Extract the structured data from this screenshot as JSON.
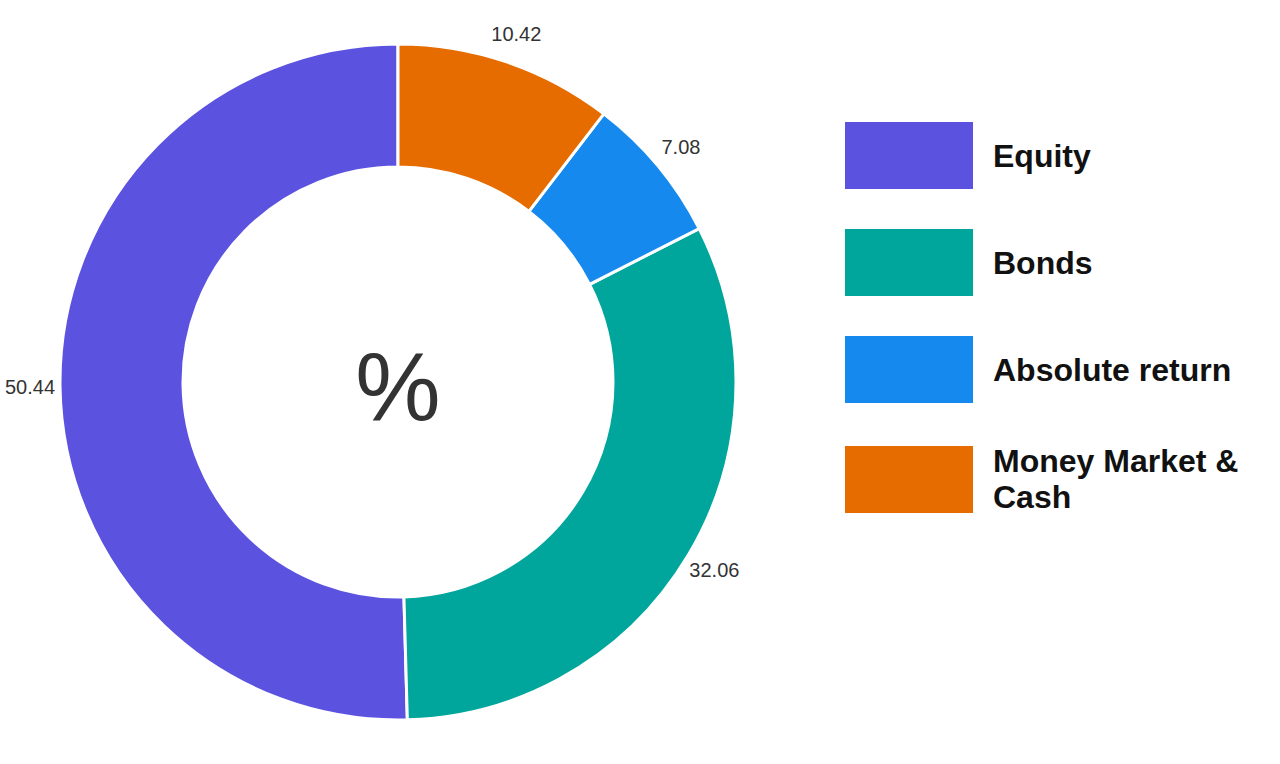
{
  "chart_data": {
    "type": "pie",
    "categories": [
      "Equity",
      "Bonds",
      "Absolute return",
      "Money Market & Cash"
    ],
    "values": [
      50.44,
      32.06,
      7.08,
      10.42
    ],
    "colors": [
      "#5b53e0",
      "#00a69c",
      "#1589ee",
      "#e66c00"
    ],
    "data_labels": true,
    "legend": "right",
    "annotation": "%"
  }
}
